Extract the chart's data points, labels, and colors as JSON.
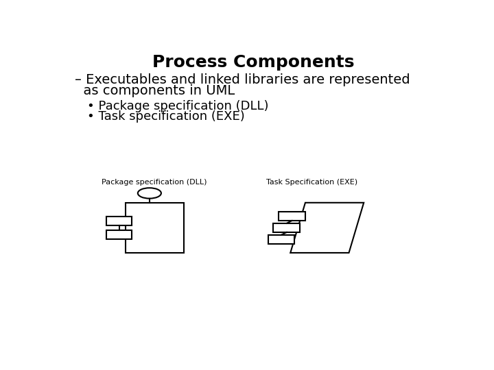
{
  "title": "Process Components",
  "title_fontsize": 18,
  "title_bold": true,
  "bg_color": "#ffffff",
  "text_color": "#000000",
  "line1": "– Executables and linked libraries are represented",
  "line2": "  as components in UML",
  "bullet1": "• Package specification (DLL)",
  "bullet2": "• Task specification (EXE)",
  "text_fontsize": 14,
  "bullet_fontsize": 13,
  "label_dll": "Package specification (DLL)",
  "label_exe": "Task Specification (EXE)",
  "label_fontsize": 8,
  "lw": 1.5
}
